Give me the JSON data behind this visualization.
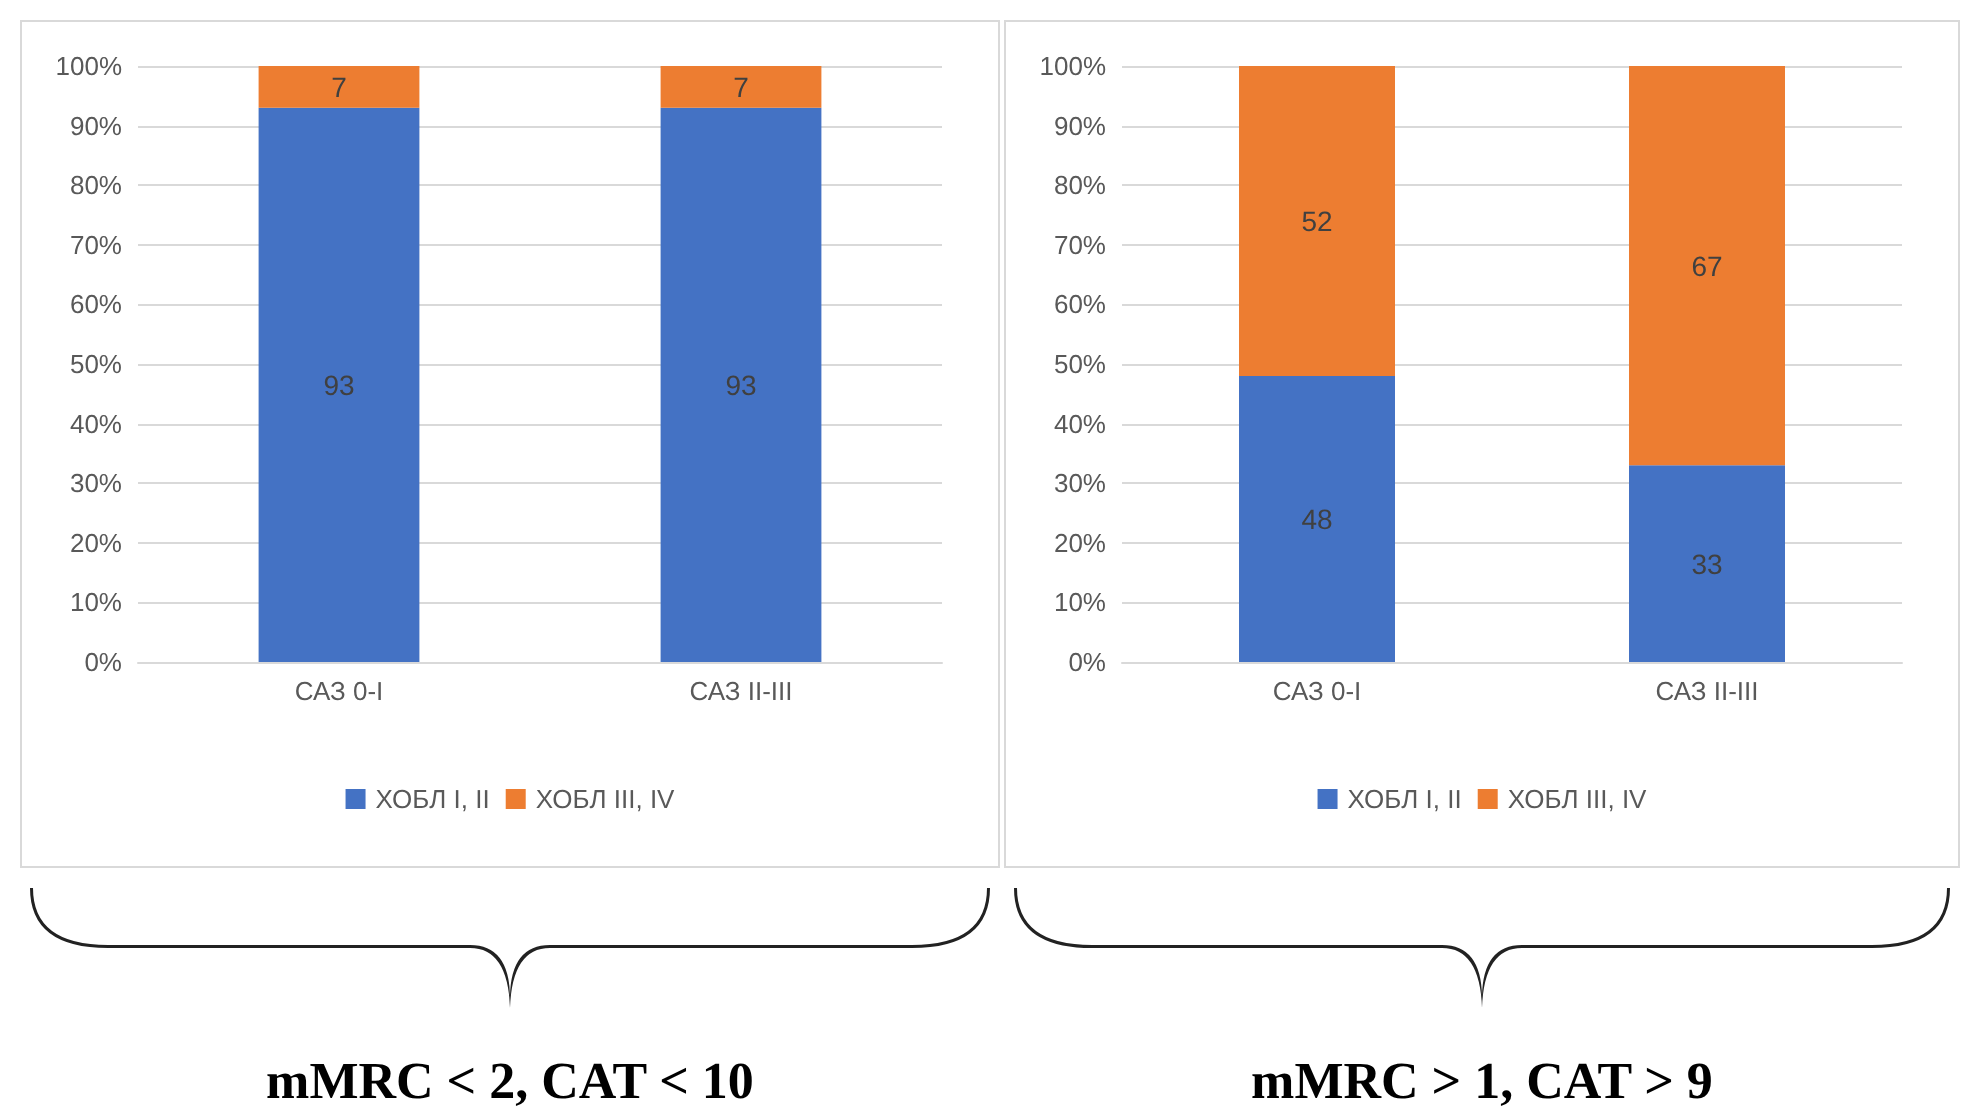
{
  "chart_data": [
    {
      "type": "bar",
      "stacked": true,
      "categories": [
        "САЗ 0-I",
        "САЗ II-III"
      ],
      "series": [
        {
          "name": "ХОБЛ I, II",
          "color": "#4472c4",
          "values": [
            93,
            93
          ]
        },
        {
          "name": "ХОБЛ III, IV",
          "color": "#ed7d31",
          "values": [
            7,
            7
          ]
        }
      ],
      "ylim": [
        0,
        100
      ],
      "yticks": [
        {
          "value": 0,
          "label": "0%"
        },
        {
          "value": 10,
          "label": "10%"
        },
        {
          "value": 20,
          "label": "20%"
        },
        {
          "value": 30,
          "label": "30%"
        },
        {
          "value": 40,
          "label": "40%"
        },
        {
          "value": 50,
          "label": "50%"
        },
        {
          "value": 60,
          "label": "60%"
        },
        {
          "value": 70,
          "label": "70%"
        },
        {
          "value": 80,
          "label": "80%"
        },
        {
          "value": 90,
          "label": "90%"
        },
        {
          "value": 100,
          "label": "100%"
        }
      ],
      "grid": "y",
      "legend": "bottom",
      "data_labels": true,
      "annotations": [
        "mMRC < 2, CAT < 10"
      ]
    },
    {
      "type": "bar",
      "stacked": true,
      "categories": [
        "САЗ 0-I",
        "САЗ II-III"
      ],
      "series": [
        {
          "name": "ХОБЛ I, II",
          "color": "#4472c4",
          "values": [
            48,
            33
          ]
        },
        {
          "name": "ХОБЛ III, IV",
          "color": "#ed7d31",
          "values": [
            52,
            67
          ]
        }
      ],
      "ylim": [
        0,
        100
      ],
      "yticks": [
        {
          "value": 0,
          "label": "0%"
        },
        {
          "value": 10,
          "label": "10%"
        },
        {
          "value": 20,
          "label": "20%"
        },
        {
          "value": 30,
          "label": "30%"
        },
        {
          "value": 40,
          "label": "40%"
        },
        {
          "value": 50,
          "label": "50%"
        },
        {
          "value": 60,
          "label": "60%"
        },
        {
          "value": 70,
          "label": "70%"
        },
        {
          "value": 80,
          "label": "80%"
        },
        {
          "value": 90,
          "label": "90%"
        },
        {
          "value": 100,
          "label": "100%"
        }
      ],
      "grid": "y",
      "legend": "bottom",
      "data_labels": true,
      "annotations": [
        "mMRC > 1, CAT > 9"
      ]
    }
  ]
}
